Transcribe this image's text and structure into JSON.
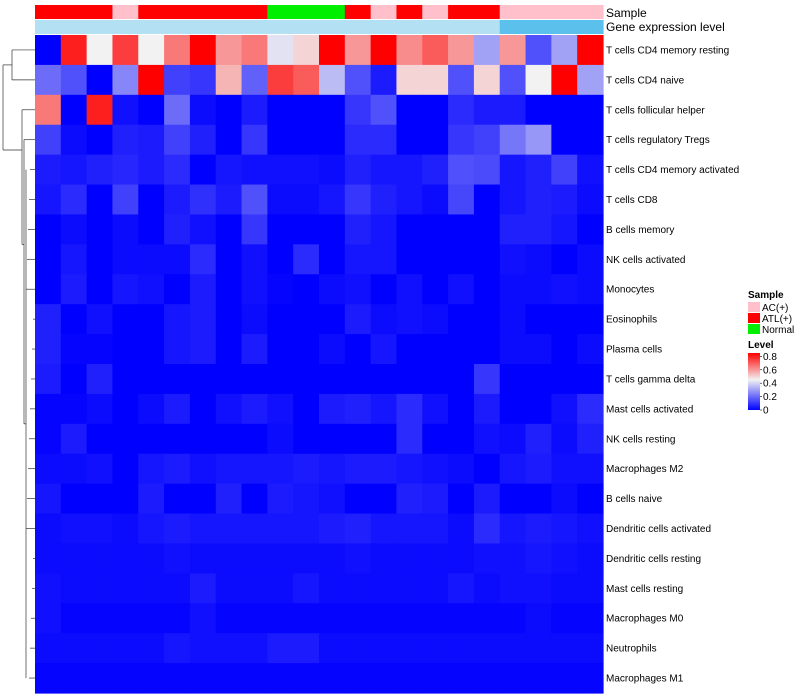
{
  "chart_data": {
    "type": "heatmap",
    "title": "",
    "annotations": [
      {
        "name": "Sample",
        "values": [
          "ATL(+)",
          "ATL(+)",
          "ATL(+)",
          "AC(+)",
          "ATL(+)",
          "ATL(+)",
          "ATL(+)",
          "ATL(+)",
          "ATL(+)",
          "Normal",
          "Normal",
          "Normal",
          "ATL(+)",
          "AC(+)",
          "ATL(+)",
          "AC(+)",
          "ATL(+)",
          "ATL(+)",
          "AC(+)",
          "AC(+)",
          "AC(+)",
          "AC(+)"
        ]
      },
      {
        "name": "Gene expression level",
        "values": [
          "low",
          "low",
          "low",
          "low",
          "low",
          "low",
          "low",
          "low",
          "low",
          "low",
          "low",
          "low",
          "low",
          "low",
          "low",
          "low",
          "low",
          "low",
          "high",
          "high",
          "high",
          "high"
        ]
      }
    ],
    "rows": [
      "T cells CD4 memory resting",
      "T cells CD4 naive",
      "T cells follicular helper",
      "T cells regulatory  Tregs",
      "T cells CD4 memory activated",
      "T cells CD8",
      "B cells memory",
      "NK cells activated",
      "Monocytes",
      "Eosinophils",
      "Plasma cells",
      "T cells gamma delta",
      "Mast cells activated",
      "NK cells resting",
      "Macrophages M2",
      "B cells naive",
      "Dendritic cells activated",
      "Dendritic cells resting",
      "Mast cells resting",
      "Macrophages M0",
      "Neutrophils",
      "Macrophages M1"
    ],
    "values": [
      [
        0.0,
        0.8,
        0.45,
        0.75,
        0.45,
        0.65,
        0.85,
        0.6,
        0.65,
        0.42,
        0.5,
        0.85,
        0.6,
        0.85,
        0.62,
        0.7,
        0.6,
        0.3,
        0.6,
        0.15,
        0.3,
        0.85
      ],
      [
        0.2,
        0.15,
        0.0,
        0.25,
        0.85,
        0.12,
        0.1,
        0.55,
        0.18,
        0.75,
        0.7,
        0.35,
        0.15,
        0.05,
        0.5,
        0.5,
        0.15,
        0.5,
        0.15,
        0.45,
        0.9,
        0.3
      ],
      [
        0.65,
        0.0,
        0.8,
        0.03,
        0.0,
        0.2,
        0.02,
        0.0,
        0.05,
        0.0,
        0.0,
        0.0,
        0.1,
        0.15,
        0.0,
        0.0,
        0.08,
        0.05,
        0.05,
        0.0,
        0.0,
        0.0
      ],
      [
        0.12,
        0.02,
        0.0,
        0.06,
        0.05,
        0.12,
        0.06,
        0.0,
        0.1,
        0.0,
        0.0,
        0.0,
        0.08,
        0.08,
        0.0,
        0.0,
        0.1,
        0.12,
        0.22,
        0.28,
        0.0,
        0.0
      ],
      [
        0.05,
        0.04,
        0.06,
        0.07,
        0.05,
        0.08,
        0.0,
        0.04,
        0.03,
        0.03,
        0.03,
        0.02,
        0.06,
        0.04,
        0.04,
        0.06,
        0.15,
        0.14,
        0.04,
        0.06,
        0.12,
        0.03
      ],
      [
        0.04,
        0.08,
        0.0,
        0.12,
        0.0,
        0.05,
        0.09,
        0.05,
        0.15,
        0.02,
        0.02,
        0.04,
        0.1,
        0.06,
        0.04,
        0.02,
        0.13,
        0.0,
        0.04,
        0.06,
        0.05,
        0.02
      ],
      [
        0.0,
        0.02,
        0.0,
        0.02,
        0.0,
        0.06,
        0.03,
        0.0,
        0.1,
        0.0,
        0.0,
        0.0,
        0.06,
        0.04,
        0.0,
        0.0,
        0.0,
        0.0,
        0.06,
        0.06,
        0.04,
        0.0
      ],
      [
        0.0,
        0.04,
        0.0,
        0.02,
        0.02,
        0.02,
        0.08,
        0.0,
        0.03,
        0.0,
        0.08,
        0.0,
        0.04,
        0.04,
        0.0,
        0.0,
        0.0,
        0.0,
        0.03,
        0.02,
        0.0,
        0.02
      ],
      [
        0.0,
        0.05,
        0.0,
        0.04,
        0.03,
        0.0,
        0.05,
        0.0,
        0.03,
        0.01,
        0.0,
        0.02,
        0.03,
        0.0,
        0.03,
        0.0,
        0.03,
        0.0,
        0.02,
        0.02,
        0.03,
        0.02
      ],
      [
        0.06,
        0.0,
        0.03,
        0.0,
        0.0,
        0.04,
        0.05,
        0.0,
        0.02,
        0.0,
        0.0,
        0.0,
        0.05,
        0.02,
        0.03,
        0.02,
        0.0,
        0.0,
        0.02,
        0.0,
        0.0,
        0.0
      ],
      [
        0.06,
        0.01,
        0.01,
        0.0,
        0.0,
        0.04,
        0.05,
        0.0,
        0.05,
        0.0,
        0.0,
        0.02,
        0.0,
        0.04,
        0.0,
        0.0,
        0.0,
        0.0,
        0.02,
        0.02,
        0.0,
        0.02
      ],
      [
        0.05,
        0.0,
        0.06,
        0.0,
        0.0,
        0.0,
        0.0,
        0.0,
        0.0,
        0.0,
        0.0,
        0.0,
        0.0,
        0.0,
        0.0,
        0.0,
        0.0,
        0.1,
        0.0,
        0.0,
        0.0,
        0.0
      ],
      [
        0.01,
        0.01,
        0.02,
        0.0,
        0.02,
        0.05,
        0.0,
        0.03,
        0.05,
        0.03,
        0.0,
        0.05,
        0.06,
        0.04,
        0.08,
        0.03,
        0.0,
        0.05,
        0.0,
        0.0,
        0.03,
        0.08
      ],
      [
        0.01,
        0.05,
        0.0,
        0.0,
        0.0,
        0.0,
        0.0,
        0.0,
        0.0,
        0.02,
        0.0,
        0.0,
        0.0,
        0.0,
        0.08,
        0.0,
        0.0,
        0.03,
        0.02,
        0.06,
        0.02,
        0.06
      ],
      [
        0.02,
        0.02,
        0.03,
        0.0,
        0.04,
        0.05,
        0.03,
        0.04,
        0.04,
        0.04,
        0.05,
        0.04,
        0.05,
        0.05,
        0.04,
        0.03,
        0.02,
        0.0,
        0.04,
        0.05,
        0.03,
        0.03
      ],
      [
        0.04,
        0.0,
        0.0,
        0.0,
        0.05,
        0.0,
        0.0,
        0.06,
        0.0,
        0.05,
        0.04,
        0.03,
        0.0,
        0.0,
        0.06,
        0.05,
        0.0,
        0.05,
        0.0,
        0.0,
        0.02,
        0.0
      ],
      [
        0.02,
        0.03,
        0.03,
        0.02,
        0.04,
        0.05,
        0.04,
        0.04,
        0.04,
        0.04,
        0.04,
        0.05,
        0.06,
        0.04,
        0.04,
        0.04,
        0.02,
        0.08,
        0.04,
        0.05,
        0.04,
        0.03
      ],
      [
        0.02,
        0.02,
        0.02,
        0.02,
        0.02,
        0.03,
        0.02,
        0.02,
        0.02,
        0.02,
        0.02,
        0.02,
        0.03,
        0.02,
        0.02,
        0.02,
        0.02,
        0.03,
        0.03,
        0.04,
        0.03,
        0.02
      ],
      [
        0.03,
        0.02,
        0.02,
        0.02,
        0.02,
        0.02,
        0.05,
        0.02,
        0.02,
        0.02,
        0.04,
        0.02,
        0.02,
        0.02,
        0.02,
        0.02,
        0.04,
        0.02,
        0.03,
        0.03,
        0.02,
        0.02
      ],
      [
        0.03,
        0.01,
        0.01,
        0.01,
        0.01,
        0.01,
        0.03,
        0.01,
        0.01,
        0.01,
        0.01,
        0.01,
        0.01,
        0.01,
        0.01,
        0.01,
        0.01,
        0.01,
        0.01,
        0.02,
        0.01,
        0.01
      ],
      [
        0.02,
        0.02,
        0.02,
        0.02,
        0.02,
        0.04,
        0.03,
        0.03,
        0.03,
        0.05,
        0.05,
        0.02,
        0.02,
        0.02,
        0.02,
        0.02,
        0.02,
        0.02,
        0.02,
        0.02,
        0.02,
        0.02
      ],
      [
        0.01,
        0.01,
        0.01,
        0.01,
        0.01,
        0.01,
        0.01,
        0.01,
        0.01,
        0.01,
        0.01,
        0.01,
        0.01,
        0.01,
        0.01,
        0.01,
        0.01,
        0.01,
        0.01,
        0.01,
        0.01,
        0.01
      ]
    ],
    "color_scale": {
      "min": 0,
      "max": 0.85,
      "low": "#0000FF",
      "mid": "#F2F2F2",
      "high": "#FF0000",
      "midpoint": 0.45
    },
    "legend": {
      "sample_title": "Sample",
      "sample_entries": [
        {
          "label": "AC(+)",
          "color": "#FFC0CB"
        },
        {
          "label": "ATL(+)",
          "color": "#FF0000"
        },
        {
          "label": "Normal",
          "color": "#00EE00"
        }
      ],
      "gene_colors": {
        "low": "#B3E0F2",
        "high": "#5BC0EB"
      },
      "level_title": "Level",
      "level_ticks": [
        0.8,
        0.6,
        0.4,
        0.2,
        0
      ]
    },
    "dendrogram": "rows"
  }
}
